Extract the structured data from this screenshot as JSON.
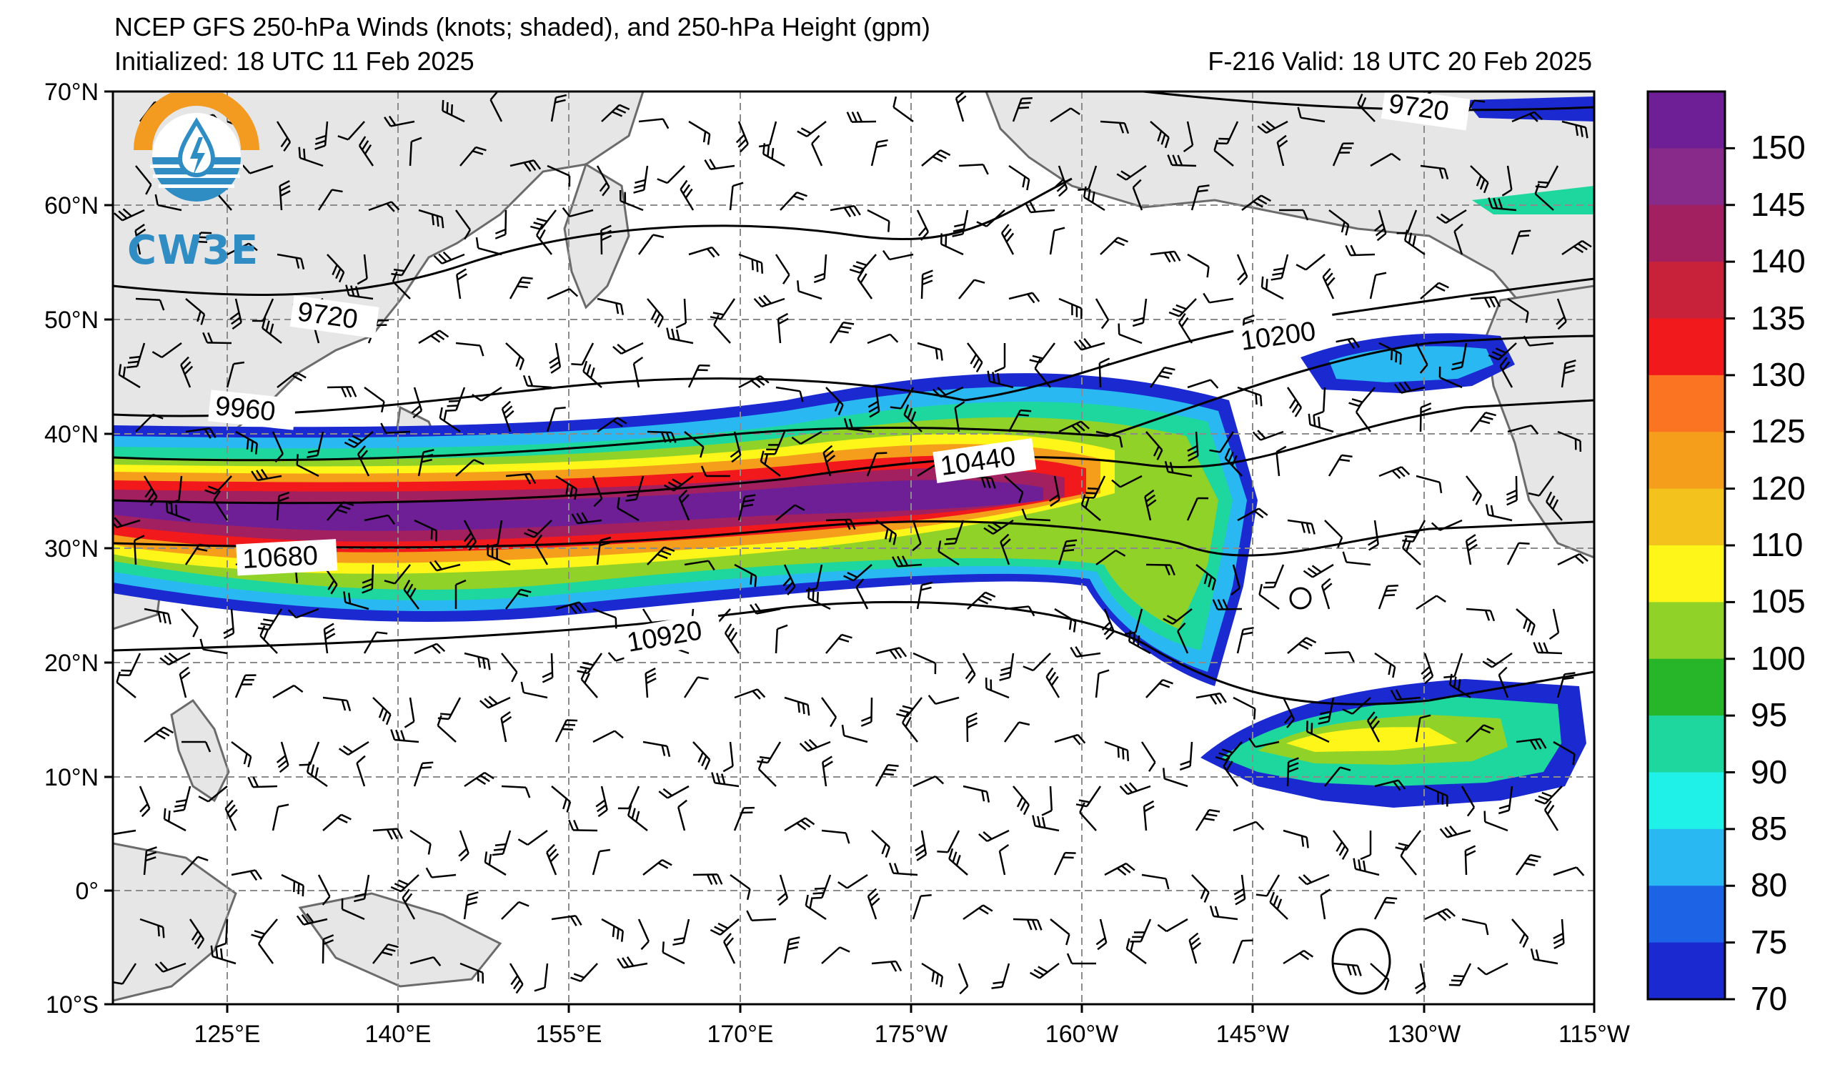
{
  "header": {
    "title": "NCEP GFS 250-hPa Winds (knots; shaded), and 250-hPa Height (gpm)",
    "initialized": "Initialized: 18 UTC 11 Feb 2025",
    "valid": "F-216  Valid: 18 UTC 20 Feb 2025"
  },
  "logo": {
    "text": "CW3E",
    "icon": "water-drop-lightning-icon"
  },
  "axes": {
    "lat_labels": [
      "70°N",
      "60°N",
      "50°N",
      "40°N",
      "30°N",
      "20°N",
      "10°N",
      "0°",
      "10°S"
    ],
    "lon_labels": [
      "125°E",
      "140°E",
      "155°E",
      "170°E",
      "175°W",
      "160°W",
      "145°W",
      "130°W",
      "115°W"
    ]
  },
  "contour_labels": [
    "9720",
    "9720",
    "9960",
    "10200",
    "10440",
    "10680",
    "10920"
  ],
  "colorbar": {
    "ticks": [
      "150",
      "145",
      "140",
      "135",
      "130",
      "125",
      "120",
      "110",
      "105",
      "100",
      "95",
      "90",
      "85",
      "80",
      "75",
      "70"
    ],
    "colors": [
      "#6f1f96",
      "#882a8a",
      "#a2205f",
      "#c8223a",
      "#f1191b",
      "#fb7421",
      "#f59e1c",
      "#f4c21c",
      "#fff619",
      "#91d229",
      "#27b52a",
      "#1ed79e",
      "#1ff1e8",
      "#2ab8f2",
      "#1d63e5",
      "#1a2ad0"
    ]
  },
  "colors": {
    "land": "#e6e6e6",
    "coast": "#6b6b6b",
    "grid": "#8c8c8c"
  }
}
